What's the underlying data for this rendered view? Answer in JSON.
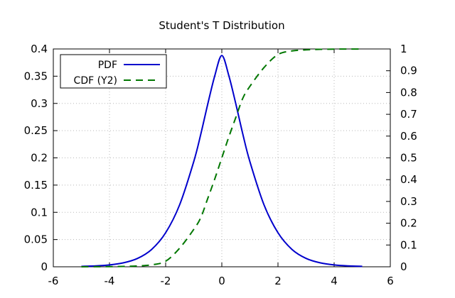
{
  "chart_data": {
    "type": "line",
    "title": "Student's T Distribution",
    "xlabel": "",
    "ylabel": "",
    "y2label": "",
    "xlim": [
      -6,
      6
    ],
    "ylim": [
      0,
      0.4
    ],
    "y2lim": [
      0,
      1
    ],
    "xticks": [
      -6,
      -4,
      -2,
      0,
      2,
      4,
      6
    ],
    "xtick_labels": [
      "-6",
      "-4",
      "-2",
      "0",
      "2",
      "4",
      "6"
    ],
    "yticks": [
      0,
      0.05,
      0.1,
      0.15,
      0.2,
      0.25,
      0.3,
      0.35,
      0.4
    ],
    "ytick_labels": [
      "0",
      "0.05",
      "0.1",
      "0.15",
      "0.2",
      "0.25",
      "0.3",
      "0.35",
      "0.4"
    ],
    "y2ticks": [
      0,
      0.1,
      0.2,
      0.3,
      0.4,
      0.5,
      0.6,
      0.7,
      0.8,
      0.9,
      1
    ],
    "y2tick_labels": [
      "0",
      "0.1",
      "0.2",
      "0.3",
      "0.4",
      "0.5",
      "0.6",
      "0.7",
      "0.8",
      "0.9",
      "1"
    ],
    "grid": true,
    "legend_position": "top-left",
    "series": [
      {
        "name": "PDF",
        "axis": "y1",
        "style": "solid",
        "color": "#0000cc",
        "x": [
          -5,
          -4.5,
          -4,
          -3.5,
          -3,
          -2.5,
          -2,
          -1.5,
          -1,
          -0.75,
          -0.5,
          -0.25,
          0,
          0.25,
          0.5,
          0.75,
          1,
          1.5,
          2,
          2.5,
          3,
          3.5,
          4,
          4.5,
          5
        ],
        "y": [
          0.0008,
          0.0016,
          0.0034,
          0.0073,
          0.0154,
          0.0318,
          0.0625,
          0.1141,
          0.1931,
          0.2432,
          0.2989,
          0.3509,
          0.388,
          0.3509,
          0.2989,
          0.2432,
          0.1931,
          0.1141,
          0.0625,
          0.0318,
          0.0154,
          0.0073,
          0.0034,
          0.0016,
          0.0008
        ]
      },
      {
        "name": "CDF (Y2)",
        "axis": "y2",
        "style": "dashed",
        "color": "#007700",
        "x": [
          -5,
          -4.5,
          -4,
          -3.5,
          -3,
          -2.5,
          -2,
          -1.5,
          -1,
          -0.75,
          -0.5,
          -0.25,
          0,
          0.25,
          0.5,
          0.75,
          1,
          1.5,
          2,
          2.5,
          3,
          3.5,
          4,
          4.5,
          5
        ],
        "y": [
          0.0002,
          0.0004,
          0.0008,
          0.0018,
          0.004,
          0.0091,
          0.0255,
          0.0858,
          0.1717,
          0.2255,
          0.3139,
          0.4037,
          0.5,
          0.5963,
          0.6861,
          0.7745,
          0.8283,
          0.9142,
          0.9745,
          0.9909,
          0.996,
          0.9982,
          0.9992,
          0.9996,
          0.9998
        ]
      }
    ]
  }
}
